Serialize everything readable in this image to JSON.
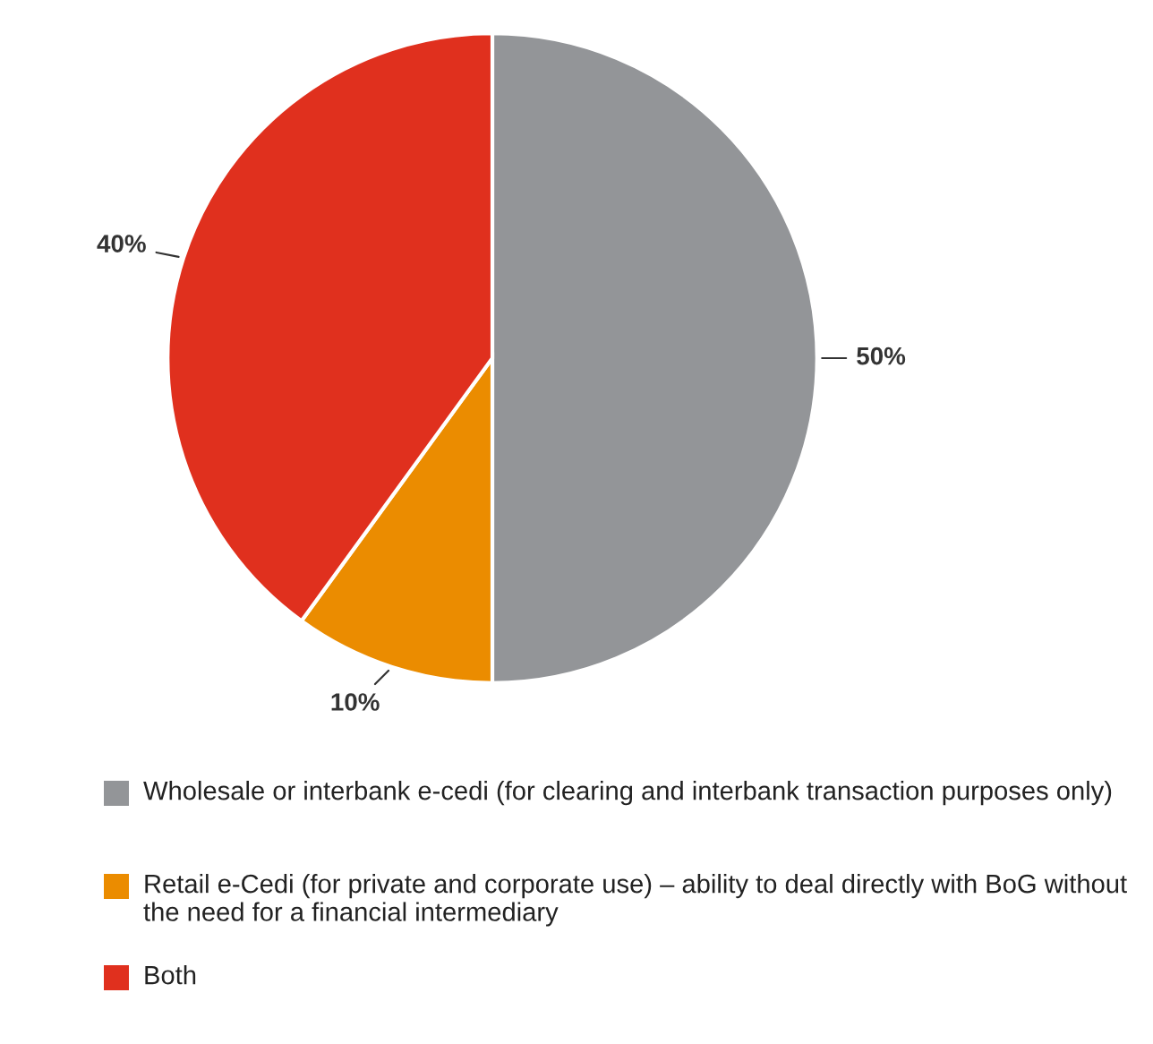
{
  "chart_data": {
    "type": "pie",
    "categories": [
      "Wholesale or interbank e-cedi (for clearing and interbank transaction purposes only)",
      "Retail e-Cedi (for private and corporate use) – ability to deal directly with BoG without the need for a financial intermediary",
      "Both"
    ],
    "values": [
      50,
      10,
      40
    ],
    "colors": [
      "#939598",
      "#eb8c00",
      "#e0301e"
    ],
    "value_labels": [
      "50%",
      "10%",
      "40%"
    ],
    "legend": "bottom"
  }
}
